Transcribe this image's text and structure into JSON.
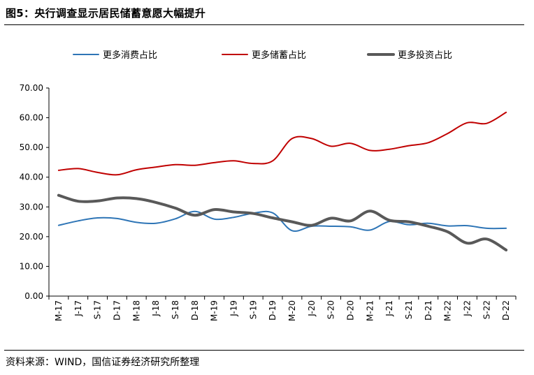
{
  "figure": {
    "title": "图5：央行调查显示居民储蓄意愿大幅提升",
    "source": "资料来源：WIND，国信证券经济研究所整理"
  },
  "chart_data": {
    "type": "line",
    "title": "",
    "xlabel": "",
    "ylabel": "",
    "ylim": [
      0,
      70
    ],
    "yticks": [
      "0.00",
      "10.00",
      "20.00",
      "30.00",
      "40.00",
      "50.00",
      "60.00",
      "70.00"
    ],
    "grid": false,
    "legend_position": "top",
    "x_labels": [
      "M-17",
      "J-17",
      "S-17",
      "D-17",
      "M-18",
      "J-18",
      "S-18",
      "D-18",
      "M-19",
      "J-19",
      "S-19",
      "D-19",
      "M-20",
      "J-20",
      "S-20",
      "D-20",
      "M-21",
      "J-21",
      "S-21",
      "D-21",
      "M-22",
      "J-22",
      "S-22",
      "D-22"
    ],
    "series": [
      {
        "name": "更多消费占比",
        "color": "#2e75b6",
        "width": 2,
        "values": [
          23.8,
          25.3,
          26.3,
          26.1,
          24.8,
          24.5,
          26.0,
          28.5,
          25.9,
          26.5,
          27.9,
          28.0,
          22.0,
          23.5,
          23.5,
          23.3,
          22.2,
          25.1,
          24.0,
          24.5,
          23.6,
          23.7,
          22.8,
          22.8
        ]
      },
      {
        "name": "更多储蓄占比",
        "color": "#c00000",
        "width": 2,
        "values": [
          42.3,
          42.9,
          41.6,
          40.8,
          42.5,
          43.4,
          44.2,
          44.0,
          44.9,
          45.5,
          44.6,
          45.5,
          53.0,
          53.0,
          50.4,
          51.4,
          49.0,
          49.4,
          50.6,
          51.6,
          54.7,
          58.3,
          58.1,
          61.8
        ]
      },
      {
        "name": "更多投资占比",
        "color": "#595959",
        "width": 4,
        "values": [
          33.9,
          31.9,
          32.0,
          33.0,
          32.8,
          31.5,
          29.6,
          27.2,
          29.1,
          28.3,
          27.8,
          26.3,
          25.0,
          23.8,
          26.2,
          25.3,
          28.6,
          25.5,
          25.0,
          23.5,
          21.6,
          17.8,
          19.2,
          15.5
        ]
      }
    ]
  }
}
